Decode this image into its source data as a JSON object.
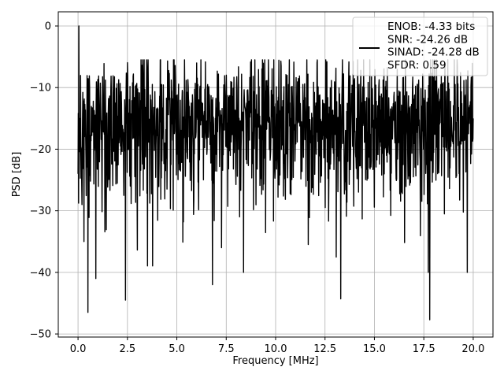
{
  "chart_data": {
    "type": "line",
    "title": "",
    "xlabel": "Frequency [MHz]",
    "ylabel": "PSD [dB]",
    "xlim": [
      -1.0,
      21.0
    ],
    "ylim": [
      -50.5,
      2.3
    ],
    "xticks": [
      0.0,
      2.5,
      5.0,
      7.5,
      10.0,
      12.5,
      15.0,
      17.5,
      20.0
    ],
    "xtick_labels": [
      "0.0",
      "2.5",
      "5.0",
      "7.5",
      "10.0",
      "12.5",
      "15.0",
      "17.5",
      "20.0"
    ],
    "yticks": [
      0,
      -10,
      -20,
      -30,
      -40,
      -50
    ],
    "ytick_labels": [
      "0",
      "−10",
      "−20",
      "−30",
      "−40",
      "−50"
    ],
    "grid": true,
    "legend_position": "top-right",
    "series": [
      {
        "name": "",
        "color": "#000000",
        "points_estimated": [
          {
            "x": 0.0,
            "y": -24
          },
          {
            "x": 0.04,
            "y": 0
          },
          {
            "x": 0.1,
            "y": -15
          },
          {
            "x": 0.2,
            "y": -29
          },
          {
            "x": 0.3,
            "y": -35
          },
          {
            "x": 0.5,
            "y": -46.5
          },
          {
            "x": 0.9,
            "y": -41
          },
          {
            "x": 2.4,
            "y": -44.5
          },
          {
            "x": 6.8,
            "y": -42
          },
          {
            "x": 13.3,
            "y": -44.3
          },
          {
            "x": 17.8,
            "y": -47.7
          },
          {
            "x": 20.0,
            "y": -15
          }
        ],
        "typical_upper_envelope_db": -8,
        "typical_lower_envelope_db": -30,
        "typical_center_db": -16
      }
    ],
    "legend": {
      "lines": [
        "ENOB: -4.33 bits",
        "SNR: -24.26 dB",
        "SINAD: -24.28 dB",
        "SFDR: 0.59"
      ]
    }
  }
}
